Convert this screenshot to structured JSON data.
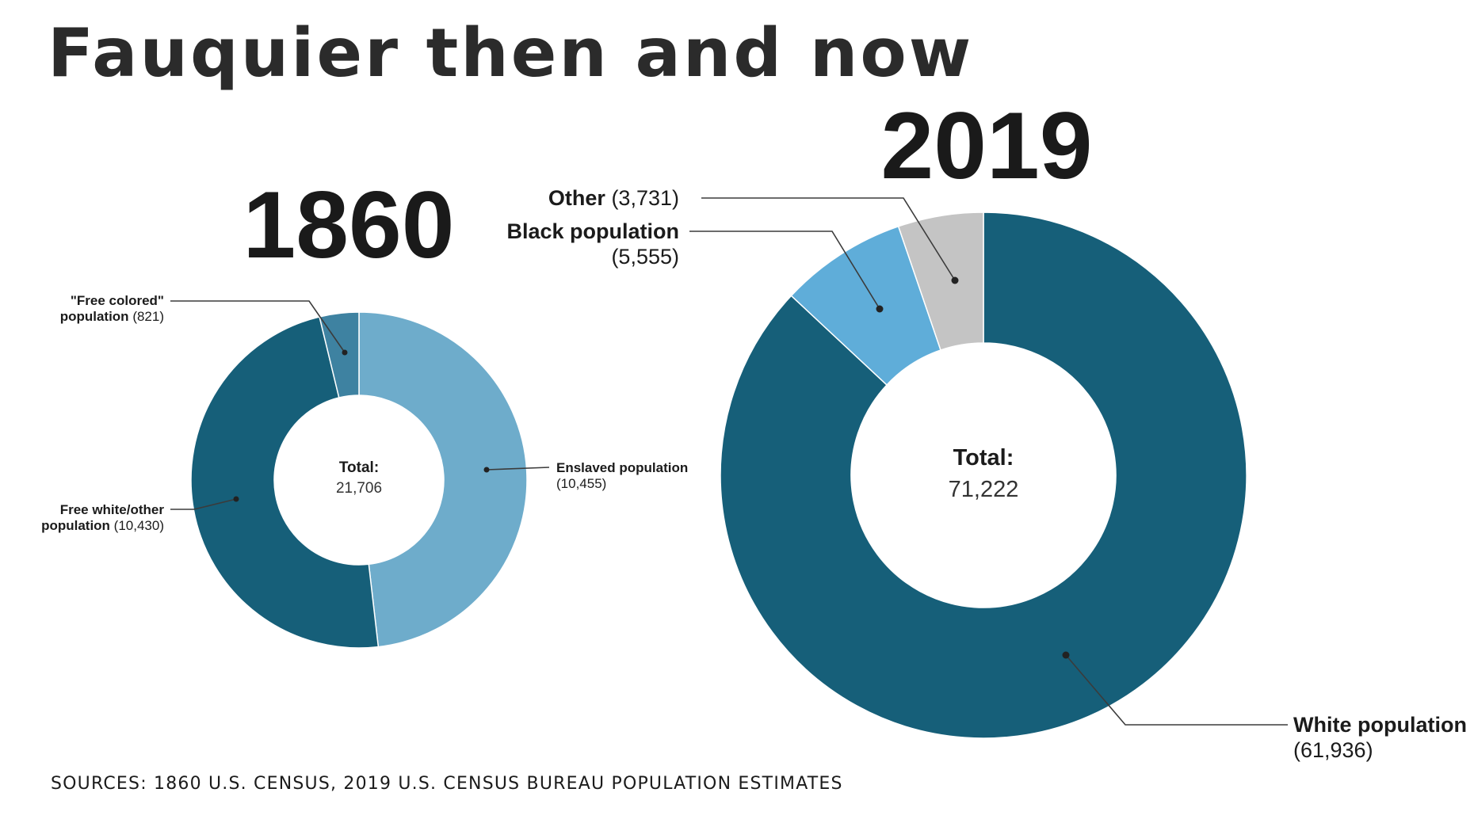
{
  "title": "Fauquier then and now",
  "source": "SOURCES: 1860 U.S. CENSUS, 2019 U.S. CENSUS BUREAU POPULATION ESTIMATES",
  "chart_data": [
    {
      "type": "pie",
      "variant": "donut",
      "year_label": "1860",
      "total_label": "Total:",
      "total_value": "21,706",
      "total": 21706,
      "slices": [
        {
          "name": "Enslaved population",
          "display_value": "(10,455)",
          "value": 10455,
          "color": "#6eaccb"
        },
        {
          "name": "Free white/other population",
          "display_value": "(10,430)",
          "value": 10430,
          "color": "#165f79"
        },
        {
          "name": "\"Free colored\" population",
          "display_value": "(821)",
          "value": 821,
          "color": "#3e82a1"
        }
      ],
      "labels": {
        "free_colored_line1": "\"Free colored\"",
        "free_colored_line2_bold": "population",
        "free_colored_line2_value": "(821)",
        "enslaved_line1": "Enslaved population",
        "enslaved_line2": "(10,455)",
        "free_white_line1": "Free white/other",
        "free_white_line2_bold": "population",
        "free_white_line2_value": "(10,430)"
      }
    },
    {
      "type": "pie",
      "variant": "donut",
      "year_label": "2019",
      "total_label": "Total:",
      "total_value": "71,222",
      "total": 71222,
      "slices": [
        {
          "name": "White population",
          "display_value": "(61,936)",
          "value": 61936,
          "color": "#165f79"
        },
        {
          "name": "Black population",
          "display_value": "(5,555)",
          "value": 5555,
          "color": "#5fadd9"
        },
        {
          "name": "Other",
          "display_value": "(3,731)",
          "value": 3731,
          "color": "#c4c4c4"
        }
      ],
      "labels": {
        "other_name": "Other",
        "other_value": "(3,731)",
        "black_line1": "Black population",
        "black_line2": "(5,555)",
        "white_line1": "White population",
        "white_line2": "(61,936)"
      }
    }
  ]
}
